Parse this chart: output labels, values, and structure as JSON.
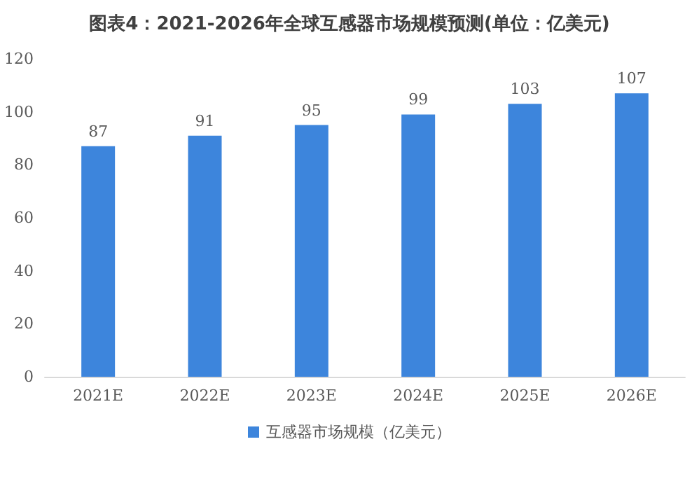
{
  "chart_data": {
    "type": "bar",
    "title": "图表4：2021-2026年全球互感器市场规模预测(单位：亿美元)",
    "categories": [
      "2021E",
      "2022E",
      "2023E",
      "2024E",
      "2025E",
      "2026E"
    ],
    "series": [
      {
        "name": "互感器市场规模（亿美元）",
        "color": "#3d85dc",
        "values": [
          87,
          91,
          95,
          99,
          103,
          107
        ]
      }
    ],
    "ylim": [
      0,
      120
    ],
    "yticks": [
      0,
      20,
      40,
      60,
      80,
      100,
      120
    ],
    "grid": false,
    "legend": "bottom",
    "data_labels": true
  }
}
